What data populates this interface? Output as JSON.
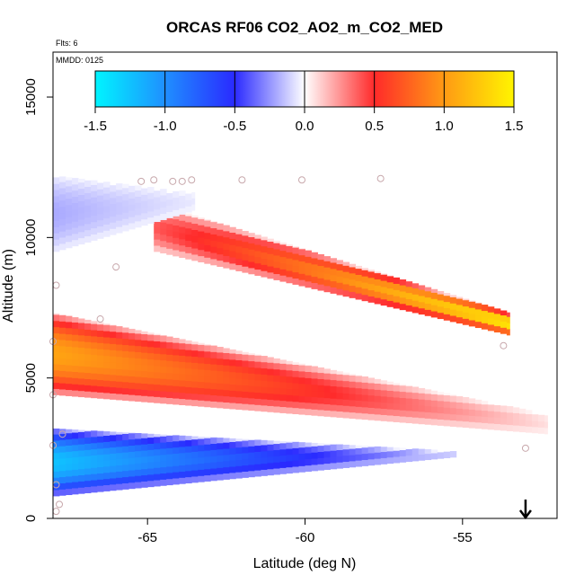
{
  "chart_data": {
    "type": "heatmap",
    "title": "ORCAS RF06 CO2_AO2_m_CO2_MED",
    "flights_label": "Flts: 6",
    "date_label": "MMDD: 0125",
    "xlabel": "Latitude (deg N)",
    "ylabel": "Altitude (m)",
    "xlim": [
      -68.0,
      -52.0
    ],
    "ylim": [
      0,
      16600
    ],
    "x_ticks": [
      -65,
      -60,
      -55
    ],
    "x_tick_labels": [
      "-65",
      "-60",
      "-55"
    ],
    "y_ticks": [
      0,
      5000,
      10000,
      15000
    ],
    "y_tick_labels": [
      "0",
      "5000",
      "10000",
      "15000"
    ],
    "colorbar": {
      "range": [
        -1.5,
        1.5
      ],
      "ticks": [
        -1.5,
        -1.0,
        -0.5,
        0.0,
        0.5,
        1.0,
        1.5
      ],
      "tick_labels": [
        "-1.5",
        "-1.0",
        "-0.5",
        "0.0",
        "0.5",
        "1.0",
        "1.5"
      ],
      "stops": [
        {
          "value": -1.5,
          "color": "#00f5ff"
        },
        {
          "value": -1.0,
          "color": "#1f8fff"
        },
        {
          "value": -0.5,
          "color": "#2a2aff"
        },
        {
          "value": 0.0,
          "color": "#ffffff"
        },
        {
          "value": 0.5,
          "color": "#ff2a2a"
        },
        {
          "value": 1.0,
          "color": "#ff9a14"
        },
        {
          "value": 1.5,
          "color": "#fff500"
        }
      ]
    },
    "layers": [
      {
        "name": "upper-positive-layer",
        "lat_start": -64.8,
        "lat_end": -53.5,
        "alt_top_start": 11200,
        "alt_top_end": 7300,
        "alt_bot_start": 9500,
        "alt_bot_end": 6500,
        "value_start": 0.4,
        "value_end": 1.45
      },
      {
        "name": "mid-positive-layer",
        "lat_start": -68.0,
        "lat_end": -52.3,
        "alt_top_start": 7300,
        "alt_top_end": 3700,
        "alt_bot_start": 4400,
        "alt_bot_end": 3000,
        "value_start": 1.05,
        "value_end": 0.07
      },
      {
        "name": "low-negative-layer",
        "lat_start": -68.0,
        "lat_end": -55.2,
        "alt_top_start": 3200,
        "alt_top_end": 2400,
        "alt_bot_start": 800,
        "alt_bot_end": 2200,
        "value_start": -1.25,
        "value_end": -0.1
      },
      {
        "name": "high-west-negative",
        "lat_start": -68.0,
        "lat_end": -63.5,
        "alt_top_start": 12200,
        "alt_top_end": 11600,
        "alt_bot_start": 9500,
        "alt_bot_end": 11000,
        "value_start": -0.2,
        "value_end": -0.05
      }
    ],
    "sample_points": [
      [
        -65.2,
        12000
      ],
      [
        -64.8,
        12050
      ],
      [
        -64.2,
        12000
      ],
      [
        -63.9,
        12000
      ],
      [
        -63.6,
        12050
      ],
      [
        -62.0,
        12050
      ],
      [
        -60.1,
        12050
      ],
      [
        -57.6,
        12100
      ],
      [
        -66.0,
        8950
      ],
      [
        -67.9,
        8300
      ],
      [
        -66.5,
        7100
      ],
      [
        -53.7,
        6150
      ],
      [
        -68.0,
        6300
      ],
      [
        -68.0,
        4400
      ],
      [
        -67.7,
        3000
      ],
      [
        -68.0,
        2600
      ],
      [
        -53.0,
        2500
      ],
      [
        -67.9,
        1200
      ],
      [
        -67.8,
        500
      ],
      [
        -67.9,
        250
      ]
    ],
    "arrow_marker": {
      "lat": -53.0,
      "direction": "down"
    }
  }
}
